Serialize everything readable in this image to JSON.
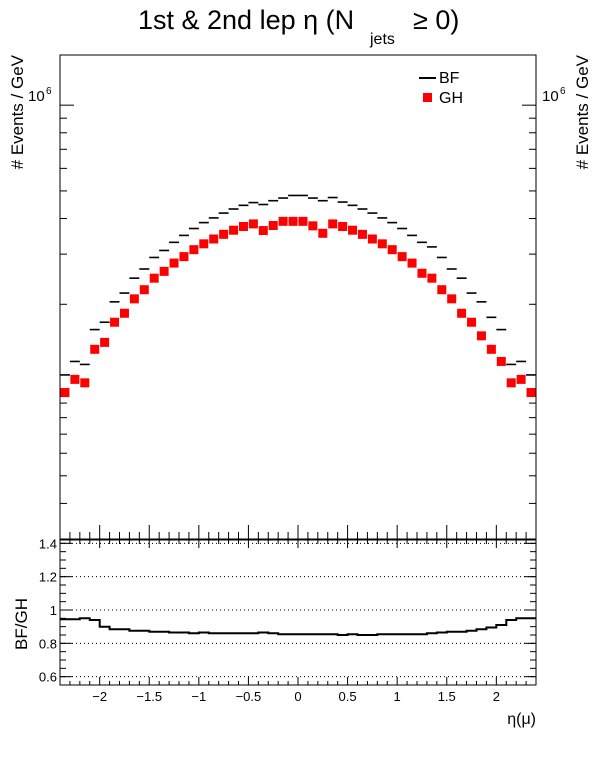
{
  "chart_data": [
    {
      "type": "scatter",
      "title": "1st & 2nd lep η (N",
      "title_subscript": "jets",
      "title_suffix": " ≥ 0)",
      "ylabel": "# Events / GeV",
      "ylabel_right": "# Events / GeV",
      "yscale": "log",
      "ytick_label_base": "10",
      "ytick_label_exp": "6",
      "xlim": [
        -2.4,
        2.4
      ],
      "ylim": [
        30000,
        1500000
      ],
      "legend": {
        "placement": "top-right",
        "entries": [
          {
            "name": "BF",
            "marker": "line",
            "color": "#000000"
          },
          {
            "name": "GH",
            "marker": "square",
            "color": "#ff0000"
          }
        ]
      },
      "x": [
        -2.35,
        -2.25,
        -2.15,
        -2.05,
        -1.95,
        -1.85,
        -1.75,
        -1.65,
        -1.55,
        -1.45,
        -1.35,
        -1.25,
        -1.15,
        -1.05,
        -0.95,
        -0.85,
        -0.75,
        -0.65,
        -0.55,
        -0.45,
        -0.35,
        -0.25,
        -0.15,
        -0.05,
        0.05,
        0.15,
        0.25,
        0.35,
        0.45,
        0.55,
        0.65,
        0.75,
        0.85,
        0.95,
        1.05,
        1.15,
        1.25,
        1.35,
        1.45,
        1.55,
        1.65,
        1.75,
        1.85,
        1.95,
        2.05,
        2.15,
        2.25,
        2.35
      ],
      "series": [
        {
          "name": "BF",
          "color": "#000000",
          "marker": "line",
          "values": [
            113000,
            126000,
            123000,
            163000,
            173000,
            204000,
            219000,
            247000,
            266000,
            292000,
            309000,
            330000,
            349000,
            369000,
            387000,
            402000,
            418000,
            432000,
            445000,
            455000,
            448000,
            462000,
            472000,
            482000,
            482000,
            472000,
            462000,
            474000,
            457000,
            445000,
            432000,
            418000,
            402000,
            387000,
            369000,
            349000,
            330000,
            318000,
            292000,
            266000,
            247000,
            219000,
            204000,
            180000,
            163000,
            123000,
            126000,
            113000
          ]
        },
        {
          "name": "GH",
          "color": "#ff0000",
          "marker": "square",
          "values": [
            98000,
            109000,
            106000,
            139000,
            147000,
            173000,
            186000,
            209000,
            225000,
            247000,
            261000,
            279000,
            294000,
            311000,
            326000,
            339000,
            352000,
            364000,
            375000,
            383000,
            363000,
            378000,
            391000,
            391000,
            391000,
            377000,
            355000,
            383000,
            375000,
            364000,
            352000,
            339000,
            326000,
            311000,
            294000,
            279000,
            257000,
            247000,
            225000,
            209000,
            186000,
            173000,
            155000,
            139000,
            126000,
            106000,
            109000,
            98000
          ]
        }
      ]
    },
    {
      "type": "line",
      "ylabel": "BF/GH",
      "xlabel": "η(μ)",
      "xlim": [
        -2.4,
        2.4
      ],
      "ylim": [
        0.55,
        1.42
      ],
      "xticks": [
        -2,
        -1.5,
        -1,
        -0.5,
        0,
        0.5,
        1,
        1.5,
        2
      ],
      "xtick_labels": [
        "−2",
        "−1.5",
        "−1",
        "−0.5",
        "0",
        "0.5",
        "1",
        "1.5",
        "2"
      ],
      "yticks": [
        0.6,
        0.8,
        1,
        1.2,
        1.4
      ],
      "ytick_labels": [
        "0.6",
        "0.8",
        "1",
        "1.2",
        "1.4"
      ],
      "grid": "horizontal-dotted",
      "x": [
        -2.35,
        -2.25,
        -2.15,
        -2.05,
        -1.95,
        -1.85,
        -1.75,
        -1.65,
        -1.55,
        -1.45,
        -1.35,
        -1.25,
        -1.15,
        -1.05,
        -0.95,
        -0.85,
        -0.75,
        -0.65,
        -0.55,
        -0.45,
        -0.35,
        -0.25,
        -0.15,
        -0.05,
        0.05,
        0.15,
        0.25,
        0.35,
        0.45,
        0.55,
        0.65,
        0.75,
        0.85,
        0.95,
        1.05,
        1.15,
        1.25,
        1.35,
        1.45,
        1.55,
        1.65,
        1.75,
        1.85,
        1.95,
        2.05,
        2.15,
        2.25,
        2.35
      ],
      "series": [
        {
          "name": "BF/GH",
          "color": "#000000",
          "values": [
            0.945,
            0.945,
            0.95,
            0.94,
            0.9,
            0.885,
            0.885,
            0.875,
            0.875,
            0.87,
            0.87,
            0.865,
            0.865,
            0.86,
            0.865,
            0.86,
            0.86,
            0.86,
            0.86,
            0.86,
            0.865,
            0.86,
            0.855,
            0.855,
            0.855,
            0.855,
            0.855,
            0.855,
            0.85,
            0.855,
            0.85,
            0.85,
            0.855,
            0.855,
            0.855,
            0.855,
            0.855,
            0.86,
            0.865,
            0.87,
            0.87,
            0.875,
            0.885,
            0.895,
            0.91,
            0.94,
            0.95,
            0.95
          ]
        }
      ]
    }
  ]
}
